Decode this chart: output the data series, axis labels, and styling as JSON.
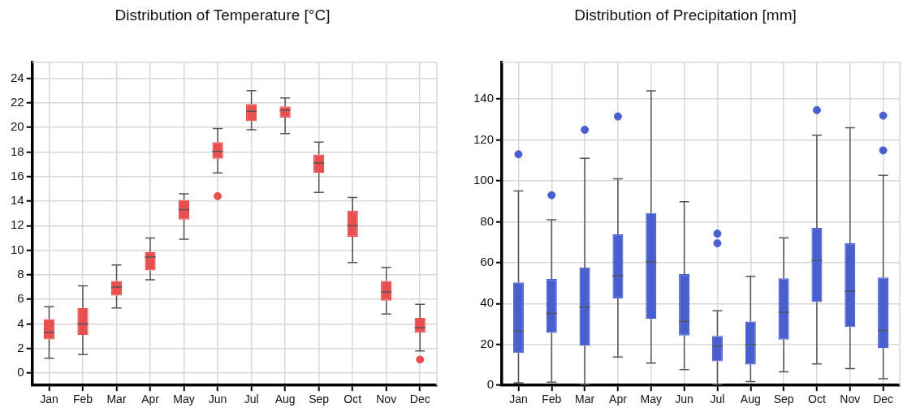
{
  "chart_data": [
    {
      "type": "box",
      "title": "Distribution of Temperature [°C]",
      "categories": [
        "Jan",
        "Feb",
        "Mar",
        "Apr",
        "May",
        "Jun",
        "Jul",
        "Aug",
        "Sep",
        "Oct",
        "Nov",
        "Dec"
      ],
      "color": "#e8504f",
      "ylim": [
        -1,
        25.3
      ],
      "yticks": [
        0,
        2,
        4,
        6,
        8,
        10,
        12,
        14,
        16,
        18,
        20,
        22,
        24
      ],
      "grid": true,
      "boxes": [
        {
          "low": 1.2,
          "q1": 2.75,
          "median": 3.3,
          "q3": 4.4,
          "high": 5.4
        },
        {
          "low": 1.5,
          "q1": 3.1,
          "median": 4.0,
          "q3": 5.3,
          "high": 7.1
        },
        {
          "low": 5.3,
          "q1": 6.3,
          "median": 7.0,
          "q3": 7.5,
          "high": 8.8
        },
        {
          "low": 7.6,
          "q1": 8.35,
          "median": 9.45,
          "q3": 9.85,
          "high": 11.0
        },
        {
          "low": 10.9,
          "q1": 12.5,
          "median": 13.3,
          "q3": 14.1,
          "high": 14.6
        },
        {
          "low": 16.3,
          "q1": 17.45,
          "median": 18.05,
          "q3": 18.8,
          "high": 19.9,
          "outliers": [
            14.4
          ]
        },
        {
          "low": 19.8,
          "q1": 20.5,
          "median": 21.3,
          "q3": 21.9,
          "high": 23.0
        },
        {
          "low": 19.5,
          "q1": 20.8,
          "median": 21.4,
          "q3": 21.7,
          "high": 22.4
        },
        {
          "low": 14.7,
          "q1": 16.3,
          "median": 17.1,
          "q3": 17.8,
          "high": 18.8
        },
        {
          "low": 9.0,
          "q1": 11.1,
          "median": 12.0,
          "q3": 13.2,
          "high": 14.3
        },
        {
          "low": 4.8,
          "q1": 5.9,
          "median": 6.6,
          "q3": 7.5,
          "high": 8.6
        },
        {
          "low": 1.8,
          "q1": 3.3,
          "median": 3.7,
          "q3": 4.5,
          "high": 5.6,
          "outliers": [
            1.1
          ]
        }
      ]
    },
    {
      "type": "box",
      "title": "Distribution of Precipitation [mm]",
      "categories": [
        "Jan",
        "Feb",
        "Mar",
        "Apr",
        "May",
        "Jun",
        "Jul",
        "Aug",
        "Sep",
        "Oct",
        "Nov",
        "Dec"
      ],
      "color": "#4a5fcf",
      "ylim": [
        0,
        158
      ],
      "yticks": [
        0,
        20,
        40,
        60,
        80,
        100,
        120,
        140
      ],
      "grid": true,
      "boxes": [
        {
          "low": 1.3,
          "q1": 15.8,
          "median": 26.5,
          "q3": 50.3,
          "high": 95.1,
          "outliers": [
            113
          ]
        },
        {
          "low": 1.6,
          "q1": 25.7,
          "median": 35.2,
          "q3": 52,
          "high": 81,
          "outliers": [
            93
          ]
        },
        {
          "low": 0.5,
          "q1": 19.4,
          "median": 38.3,
          "q3": 57.6,
          "high": 111,
          "outliers": [
            125
          ]
        },
        {
          "low": 13.9,
          "q1": 42.5,
          "median": 53.6,
          "q3": 73.8,
          "high": 101,
          "outliers": [
            131.5
          ]
        },
        {
          "low": 10.9,
          "q1": 32.5,
          "median": 60.4,
          "q3": 84.3,
          "high": 144
        },
        {
          "low": 7.7,
          "q1": 24.4,
          "median": 31.2,
          "q3": 54.4,
          "high": 89.8
        },
        {
          "low": 0.5,
          "q1": 11.8,
          "median": 19.1,
          "q3": 24.2,
          "high": 36.5,
          "outliers": [
            74.2,
            69.5
          ]
        },
        {
          "low": 1.9,
          "q1": 10.2,
          "median": 19.9,
          "q3": 31.2,
          "high": 53.3
        },
        {
          "low": 6.6,
          "q1": 22.4,
          "median": 35.7,
          "q3": 52.3,
          "high": 72.2
        },
        {
          "low": 10.5,
          "q1": 40.7,
          "median": 61,
          "q3": 77,
          "high": 122.3,
          "outliers": [
            134.6
          ]
        },
        {
          "low": 8.2,
          "q1": 28.5,
          "median": 46,
          "q3": 69.5,
          "high": 126
        },
        {
          "low": 3.3,
          "q1": 18.2,
          "median": 26.8,
          "q3": 52.7,
          "high": 102.7,
          "outliers": [
            131.9,
            114.9
          ]
        }
      ]
    }
  ]
}
